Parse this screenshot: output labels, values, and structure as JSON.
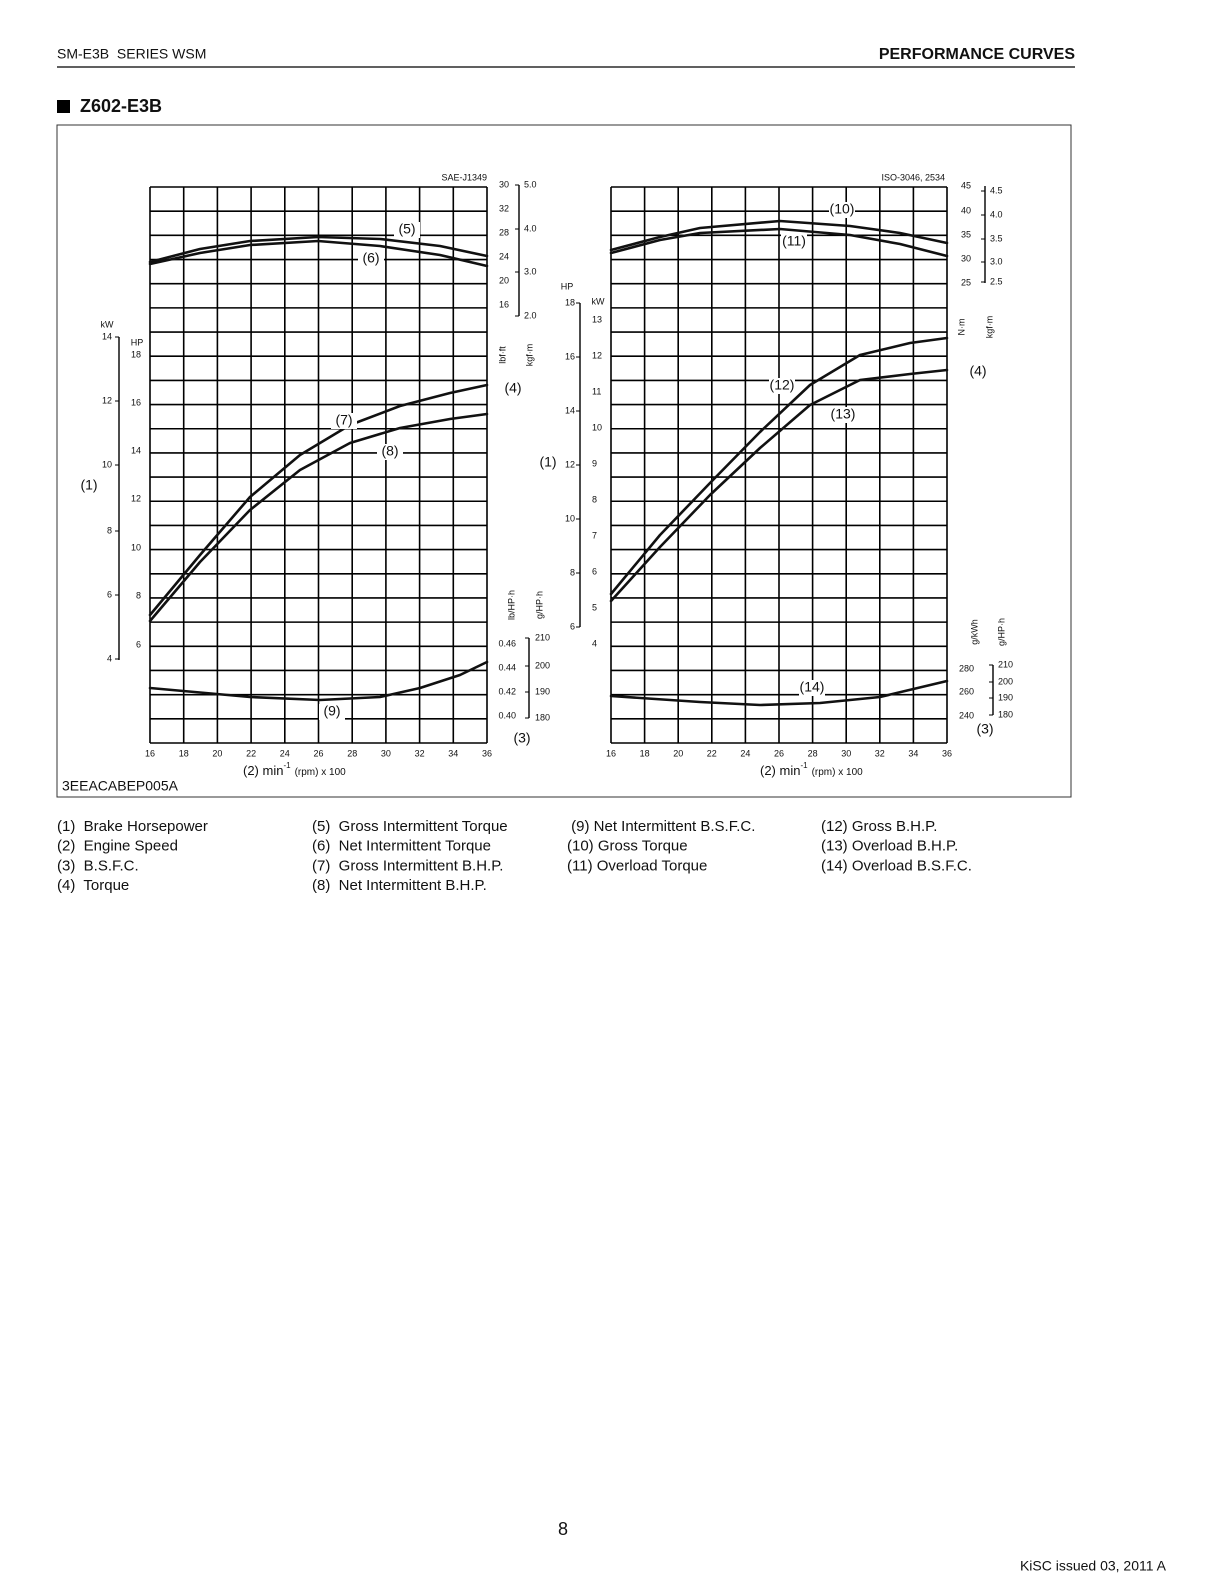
{
  "header": {
    "left": "SM-E3B  SERIES WSM",
    "right": "PERFORMANCE CURVES"
  },
  "section_title": "Z602-E3B",
  "figure": {
    "left_chart": {
      "standard": "SAE-J1349",
      "torque_a_unit": "lbf·ft",
      "torque_a_ticks": [
        "30",
        "32",
        "28",
        "24",
        "20",
        "16"
      ],
      "torque_b_unit": "kgf·m",
      "torque_b_ticks": [
        "5.0",
        "4.0",
        "3.0",
        "2.0"
      ],
      "power_a_unit": "kW",
      "power_a_ticks": [
        "14",
        "12",
        "10",
        "8",
        "6",
        "4"
      ],
      "power_b_unit": "HP",
      "power_b_ticks": [
        "18",
        "16",
        "14",
        "12",
        "10",
        "8",
        "6"
      ],
      "bsfc_a_unit": "lb/HP·h",
      "bsfc_a_ticks": [
        "0.46",
        "0.44",
        "0.42",
        "0.40"
      ],
      "bsfc_b_unit": "g/HP·h",
      "bsfc_b_ticks": [
        "210",
        "200",
        "190",
        "180"
      ],
      "x_ticks": [
        "16",
        "18",
        "20",
        "22",
        "24",
        "26",
        "28",
        "30",
        "32",
        "34",
        "36"
      ],
      "x_title": {
        "prefix": "(2) min",
        "sup": "-1",
        "suffix": "(rpm) x 100"
      },
      "axis_markers": {
        "power": "(1)",
        "torque": "(4)",
        "bsfc": "(3)"
      },
      "curve_labels": [
        "(5)",
        "(6)",
        "(7)",
        "(8)",
        "(9)"
      ]
    },
    "right_chart": {
      "standard": "ISO-3046, 2534",
      "torque_a_unit": "N·m",
      "torque_a_ticks": [
        "45",
        "40",
        "35",
        "30",
        "25"
      ],
      "torque_b_unit": "kgf·m",
      "torque_b_ticks": [
        "4.5",
        "4.0",
        "3.5",
        "3.0",
        "2.5"
      ],
      "power_a_unit": "HP",
      "power_a_ticks": [
        "18",
        "16",
        "14",
        "12",
        "10",
        "8",
        "6"
      ],
      "power_b_unit": "kW",
      "power_b_ticks": [
        "13",
        "12",
        "11",
        "10",
        "9",
        "8",
        "7",
        "6",
        "5",
        "4"
      ],
      "bsfc_a_unit": "g/kWh",
      "bsfc_a_ticks": [
        "280",
        "260",
        "240"
      ],
      "bsfc_b_unit": "g/HP·h",
      "bsfc_b_ticks": [
        "210",
        "200",
        "190",
        "180"
      ],
      "x_ticks": [
        "16",
        "18",
        "20",
        "22",
        "24",
        "26",
        "28",
        "30",
        "32",
        "34",
        "36"
      ],
      "x_title": {
        "prefix": "(2) min",
        "sup": "-1",
        "suffix": "(rpm) x 100"
      },
      "axis_markers": {
        "power": "(1)",
        "torque": "(4)",
        "bsfc": "(3)"
      },
      "curve_labels": [
        "(10)",
        "(11)",
        "(12)",
        "(13)",
        "(14)"
      ]
    },
    "code": "3EEACABEP005A"
  },
  "legend": [
    [
      "(1)  Brake Horsepower",
      "(2)  Engine Speed",
      "(3)  B.S.F.C.",
      "(4)  Torque"
    ],
    [
      "(5)  Gross Intermittent Torque",
      "(6)  Net Intermittent Torque",
      "(7)  Gross Intermittent B.H.P.",
      "(8)  Net Intermittent B.H.P."
    ],
    [
      " (9) Net Intermittent B.S.F.C.",
      "(10) Gross Torque",
      "(11) Overload Torque"
    ],
    [
      "(12) Gross B.H.P.",
      "(13) Overload B.H.P.",
      "(14) Overload B.S.F.C."
    ]
  ],
  "page_number": "8",
  "footer": "KiSC issued 03, 2011 A"
}
